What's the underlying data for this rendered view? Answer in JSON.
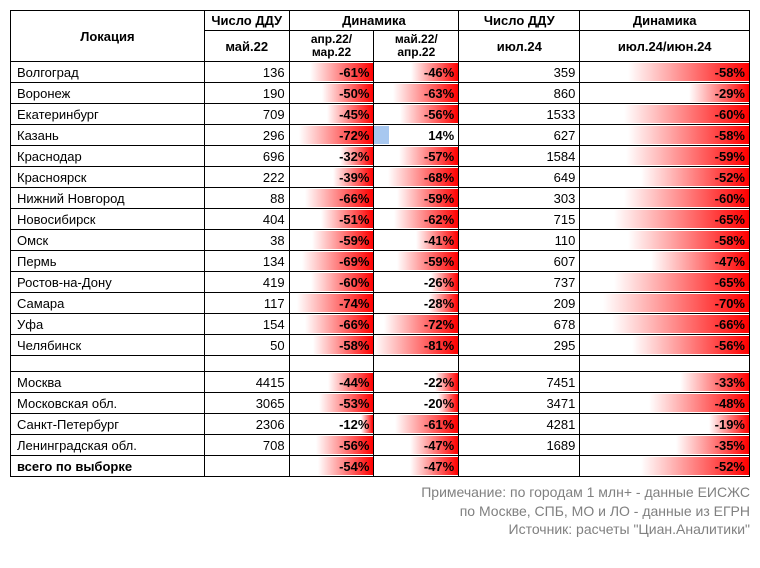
{
  "colors": {
    "bar_gradient_start": "#ffffff",
    "bar_gradient_end": "#ff0000",
    "pos_bar": "#a8c8f0",
    "border": "#000000",
    "footer_text": "#808080"
  },
  "header": {
    "location": "Локация",
    "ddu_count": "Число ДДУ",
    "dynamics": "Динамика",
    "may22": "май.22",
    "apr22_mar22": "апр.22/\nмар.22",
    "may22_apr22": "май.22/\nапр.22",
    "jul24": "июл.24",
    "jul24_jun24": "июл.24/июн.24"
  },
  "bar_max_abs": 81,
  "rows_group1": [
    {
      "loc": "Волгоград",
      "may22": 136,
      "d1": -61,
      "d2": -46,
      "jul24": 359,
      "d3": -58
    },
    {
      "loc": "Воронеж",
      "may22": 190,
      "d1": -50,
      "d2": -63,
      "jul24": 860,
      "d3": -29
    },
    {
      "loc": "Екатеринбург",
      "may22": 709,
      "d1": -45,
      "d2": -56,
      "jul24": 1533,
      "d3": -60
    },
    {
      "loc": "Казань",
      "may22": 296,
      "d1": -72,
      "d2": 14,
      "jul24": 627,
      "d3": -58
    },
    {
      "loc": "Краснодар",
      "may22": 696,
      "d1": -32,
      "d2": -57,
      "jul24": 1584,
      "d3": -59
    },
    {
      "loc": "Красноярск",
      "may22": 222,
      "d1": -39,
      "d2": -68,
      "jul24": 649,
      "d3": -52
    },
    {
      "loc": "Нижний Новгород",
      "may22": 88,
      "d1": -66,
      "d2": -59,
      "jul24": 303,
      "d3": -60
    },
    {
      "loc": "Новосибирск",
      "may22": 404,
      "d1": -51,
      "d2": -62,
      "jul24": 715,
      "d3": -65
    },
    {
      "loc": "Омск",
      "may22": 38,
      "d1": -59,
      "d2": -41,
      "jul24": 110,
      "d3": -58
    },
    {
      "loc": "Пермь",
      "may22": 134,
      "d1": -69,
      "d2": -59,
      "jul24": 607,
      "d3": -47
    },
    {
      "loc": "Ростов-на-Дону",
      "may22": 419,
      "d1": -60,
      "d2": -26,
      "jul24": 737,
      "d3": -65
    },
    {
      "loc": "Самара",
      "may22": 117,
      "d1": -74,
      "d2": -28,
      "jul24": 209,
      "d3": -70
    },
    {
      "loc": "Уфа",
      "may22": 154,
      "d1": -66,
      "d2": -72,
      "jul24": 678,
      "d3": -66
    },
    {
      "loc": "Челябинск",
      "may22": 50,
      "d1": -58,
      "d2": -81,
      "jul24": 295,
      "d3": -56
    }
  ],
  "rows_group2": [
    {
      "loc": "Москва",
      "may22": 4415,
      "d1": -44,
      "d2": -22,
      "jul24": 7451,
      "d3": -33
    },
    {
      "loc": "Московская обл.",
      "may22": 3065,
      "d1": -53,
      "d2": -20,
      "jul24": 3471,
      "d3": -48
    },
    {
      "loc": "Санкт-Петербург",
      "may22": 2306,
      "d1": -12,
      "d2": -61,
      "jul24": 4281,
      "d3": -19
    },
    {
      "loc": "Ленинградская обл.",
      "may22": 708,
      "d1": -56,
      "d2": -47,
      "jul24": 1689,
      "d3": -35
    }
  ],
  "total_row": {
    "loc": "всего по выборке",
    "may22": "",
    "d1": -54,
    "d2": -47,
    "jul24": "",
    "d3": -52
  },
  "footer": {
    "line1": "Примечание: по городам 1 млн+ - данные ЕИСЖС",
    "line2": "по Москве, СПБ, МО и ЛО - данные из ЕГРН",
    "line3": "Источник: расчеты \"Циан.Аналитики\""
  }
}
